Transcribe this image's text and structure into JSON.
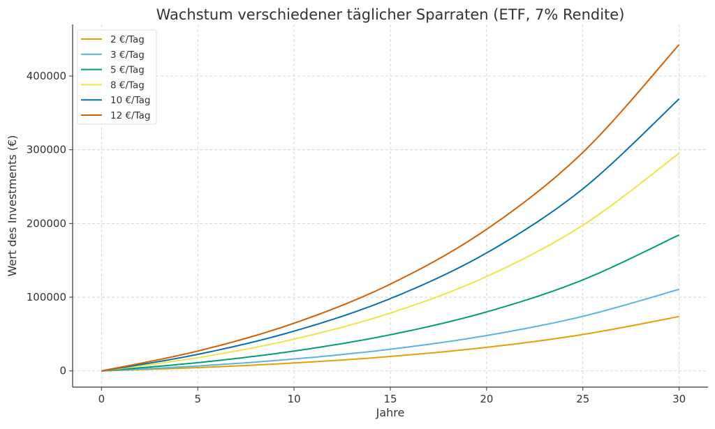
{
  "chart_data": {
    "type": "line",
    "title": "Wachstum verschiedener täglicher Sparraten (ETF, 7% Rendite)",
    "xlabel": "Jahre",
    "ylabel": "Wert des Investments (€)",
    "xlim": [
      -1.5,
      31.5
    ],
    "ylim": [
      -22000,
      470000
    ],
    "xticks": [
      0,
      5,
      10,
      15,
      20,
      25,
      30
    ],
    "yticks": [
      0,
      100000,
      200000,
      300000,
      400000
    ],
    "grid": true,
    "legend_position": "top-left",
    "x": [
      0,
      5,
      10,
      15,
      20,
      25,
      30
    ],
    "series": [
      {
        "name": "2 €/Tag",
        "color": "#E69F00",
        "values": [
          0,
          4492,
          10792,
          19628,
          32022,
          49404,
          73783
        ]
      },
      {
        "name": "3 €/Tag",
        "color": "#56B4E9",
        "values": [
          0,
          6738,
          16188,
          29442,
          48032,
          74106,
          110675
        ]
      },
      {
        "name": "5 €/Tag",
        "color": "#009E73",
        "values": [
          0,
          11230,
          26980,
          49071,
          80054,
          123510,
          184458
        ]
      },
      {
        "name": "8 €/Tag",
        "color": "#F0E442",
        "values": [
          0,
          17968,
          43168,
          78513,
          128086,
          197617,
          295133
        ]
      },
      {
        "name": "10 €/Tag",
        "color": "#0072B2",
        "values": [
          0,
          22460,
          53960,
          98141,
          160108,
          247019,
          368917
        ]
      },
      {
        "name": "12 €/Tag",
        "color": "#D55E00",
        "values": [
          0,
          26952,
          64752,
          117770,
          192129,
          296427,
          442700
        ]
      }
    ]
  }
}
